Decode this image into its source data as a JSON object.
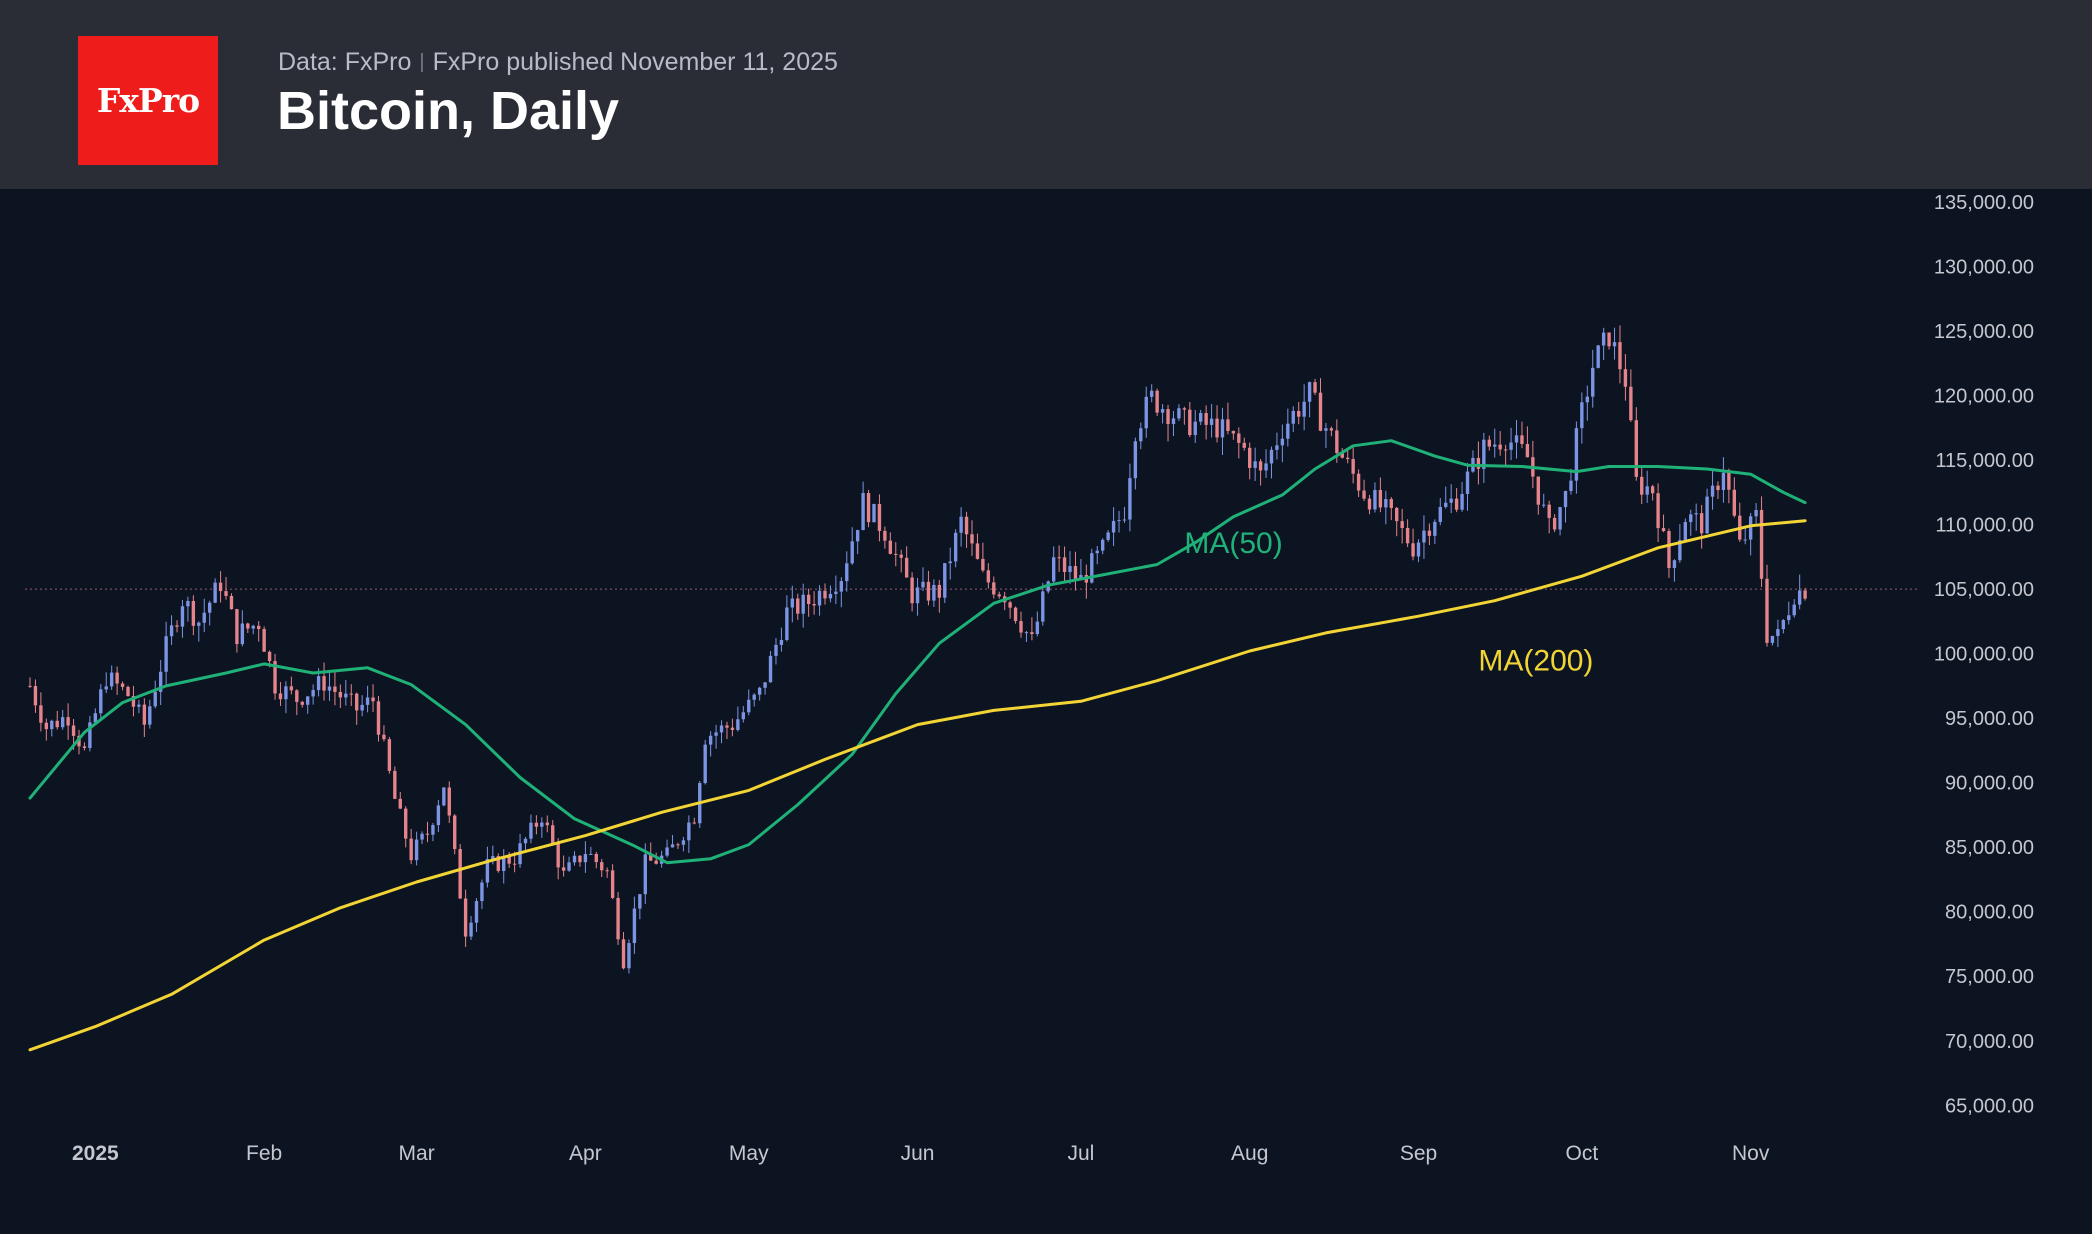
{
  "header": {
    "logo_text": "FxPro",
    "source": "Data: FxPro",
    "separator": "|",
    "published": "FxPro published November 11, 2025",
    "title": "Bitcoin, Daily"
  },
  "colors": {
    "background": "#0d1421",
    "header": "#2a2d36",
    "logo": "#ef1c1c",
    "up_candle": "#7b95e4",
    "down_candle": "#e6848c",
    "ma50": "#1fb177",
    "ma200": "#f2d535",
    "ref_line": "#9a5a66"
  },
  "chart_data": {
    "type": "candlestick",
    "title": "Bitcoin, Daily",
    "y_axis": {
      "ylim": [
        62000,
        136000
      ],
      "ticks": [
        135000,
        130000,
        125000,
        120000,
        115000,
        110000,
        105000,
        100000,
        95000,
        90000,
        85000,
        80000,
        75000,
        70000,
        65000
      ],
      "tick_labels": [
        "135,000.00",
        "130,000.00",
        "125,000.00",
        "120,000.00",
        "115,000.00",
        "110,000.00",
        "105,000.00",
        "100,000.00",
        "95,000.00",
        "90,000.00",
        "85,000.00",
        "80,000.00",
        "75,000.00",
        "70,000.00",
        "65,000.00"
      ],
      "position": "right"
    },
    "x_axis": {
      "range": [
        "2024-12-20",
        "2025-11-22"
      ],
      "ticks": [
        {
          "date": "2025-01-01",
          "label": "2025",
          "bold": true
        },
        {
          "date": "2025-02-01",
          "label": "Feb"
        },
        {
          "date": "2025-03-01",
          "label": "Mar"
        },
        {
          "date": "2025-04-01",
          "label": "Apr"
        },
        {
          "date": "2025-05-01",
          "label": "May"
        },
        {
          "date": "2025-06-01",
          "label": "Jun"
        },
        {
          "date": "2025-07-01",
          "label": "Jul"
        },
        {
          "date": "2025-08-01",
          "label": "Aug"
        },
        {
          "date": "2025-09-01",
          "label": "Sep"
        },
        {
          "date": "2025-10-01",
          "label": "Oct"
        },
        {
          "date": "2025-11-01",
          "label": "Nov"
        }
      ]
    },
    "price_path": {
      "description": "approximate daily close",
      "x": [
        "2024-12-20",
        "2024-12-23",
        "2024-12-27",
        "2024-12-30",
        "2025-01-03",
        "2025-01-07",
        "2025-01-10",
        "2025-01-14",
        "2025-01-17",
        "2025-01-20",
        "2025-01-24",
        "2025-01-27",
        "2025-01-31",
        "2025-02-03",
        "2025-02-07",
        "2025-02-12",
        "2025-02-18",
        "2025-02-21",
        "2025-02-25",
        "2025-02-28",
        "2025-03-03",
        "2025-03-06",
        "2025-03-10",
        "2025-03-14",
        "2025-03-19",
        "2025-03-24",
        "2025-03-28",
        "2025-04-01",
        "2025-04-05",
        "2025-04-08",
        "2025-04-12",
        "2025-04-16",
        "2025-04-21",
        "2025-04-23",
        "2025-04-28",
        "2025-05-03",
        "2025-05-08",
        "2025-05-12",
        "2025-05-18",
        "2025-05-22",
        "2025-05-26",
        "2025-05-31",
        "2025-06-05",
        "2025-06-09",
        "2025-06-13",
        "2025-06-17",
        "2025-06-22",
        "2025-06-26",
        "2025-07-01",
        "2025-07-05",
        "2025-07-09",
        "2025-07-11",
        "2025-07-14",
        "2025-07-20",
        "2025-07-26",
        "2025-07-31",
        "2025-08-03",
        "2025-08-07",
        "2025-08-12",
        "2025-08-14",
        "2025-08-18",
        "2025-08-22",
        "2025-08-26",
        "2025-08-31",
        "2025-09-04",
        "2025-09-08",
        "2025-09-13",
        "2025-09-17",
        "2025-09-21",
        "2025-09-25",
        "2025-09-28",
        "2025-10-01",
        "2025-10-03",
        "2025-10-06",
        "2025-10-09",
        "2025-10-11",
        "2025-10-14",
        "2025-10-17",
        "2025-10-20",
        "2025-10-23",
        "2025-10-27",
        "2025-10-30",
        "2025-11-02",
        "2025-11-04",
        "2025-11-06",
        "2025-11-09",
        "2025-11-11"
      ],
      "y": [
        97500,
        94300,
        95200,
        92400,
        98200,
        96800,
        94500,
        100500,
        104200,
        102500,
        105500,
        101500,
        102400,
        97600,
        96500,
        97800,
        95700,
        96400,
        88700,
        84400,
        86100,
        89900,
        78600,
        83500,
        84200,
        87500,
        82800,
        84700,
        83100,
        76300,
        83700,
        84300,
        87500,
        93600,
        94500,
        96900,
        103200,
        104000,
        106100,
        111700,
        109500,
        104600,
        104800,
        110200,
        105900,
        104600,
        100900,
        107200,
        105700,
        108000,
        111200,
        117500,
        119800,
        117900,
        117600,
        115800,
        113800,
        117500,
        120100,
        118300,
        115200,
        112500,
        111000,
        108300,
        110700,
        112100,
        115900,
        116800,
        115200,
        109600,
        112200,
        118600,
        122300,
        124700,
        121200,
        113200,
        112700,
        106700,
        110600,
        110100,
        114500,
        108300,
        110600,
        101500,
        101300,
        104700,
        105000
      ]
    },
    "series": [
      {
        "name": "MA(50)",
        "x": [
          "2024-12-20",
          "2024-12-30",
          "2025-01-06",
          "2025-01-14",
          "2025-01-25",
          "2025-02-01",
          "2025-02-10",
          "2025-02-20",
          "2025-02-28",
          "2025-03-10",
          "2025-03-20",
          "2025-03-30",
          "2025-04-10",
          "2025-04-16",
          "2025-04-24",
          "2025-05-01",
          "2025-05-10",
          "2025-05-20",
          "2025-05-28",
          "2025-06-05",
          "2025-06-15",
          "2025-06-25",
          "2025-07-05",
          "2025-07-15",
          "2025-07-22",
          "2025-07-29",
          "2025-08-07",
          "2025-08-13",
          "2025-08-20",
          "2025-08-27",
          "2025-09-04",
          "2025-09-10",
          "2025-09-20",
          "2025-09-30",
          "2025-10-06",
          "2025-10-15",
          "2025-10-24",
          "2025-11-01",
          "2025-11-07",
          "2025-11-11"
        ],
        "values": [
          88800,
          93900,
          96200,
          97500,
          98500,
          99200,
          98500,
          98900,
          97600,
          94500,
          90400,
          87200,
          85100,
          83800,
          84100,
          85200,
          88300,
          92200,
          96900,
          100800,
          103900,
          105300,
          106100,
          106900,
          108600,
          110600,
          112300,
          114300,
          116100,
          116500,
          115300,
          114600,
          114500,
          114100,
          114500,
          114500,
          114300,
          113900,
          112500,
          111700
        ]
      },
      {
        "name": "MA(200)",
        "x": [
          "2024-12-20",
          "2025-01-01",
          "2025-01-15",
          "2025-02-01",
          "2025-02-15",
          "2025-03-01",
          "2025-03-15",
          "2025-04-01",
          "2025-04-15",
          "2025-05-01",
          "2025-05-15",
          "2025-06-01",
          "2025-06-15",
          "2025-07-01",
          "2025-07-15",
          "2025-08-01",
          "2025-08-15",
          "2025-09-01",
          "2025-09-15",
          "2025-10-01",
          "2025-10-15",
          "2025-11-01",
          "2025-11-11"
        ],
        "values": [
          69300,
          71100,
          73600,
          77800,
          80300,
          82300,
          84000,
          85900,
          87700,
          89400,
          91800,
          94500,
          95600,
          96300,
          97900,
          100200,
          101600,
          102900,
          104100,
          106000,
          108200,
          109900,
          110300
        ]
      }
    ],
    "annotations": [
      {
        "text": "MA(50)",
        "x": "2025-07-20",
        "y": 107800,
        "color": "#1fb177"
      },
      {
        "text": "MA(200)",
        "x": "2025-09-12",
        "y": 98700,
        "color": "#f2d535"
      }
    ],
    "reference_line": {
      "y": 105000,
      "style": "dotted"
    },
    "grid": false,
    "legend": "none"
  }
}
